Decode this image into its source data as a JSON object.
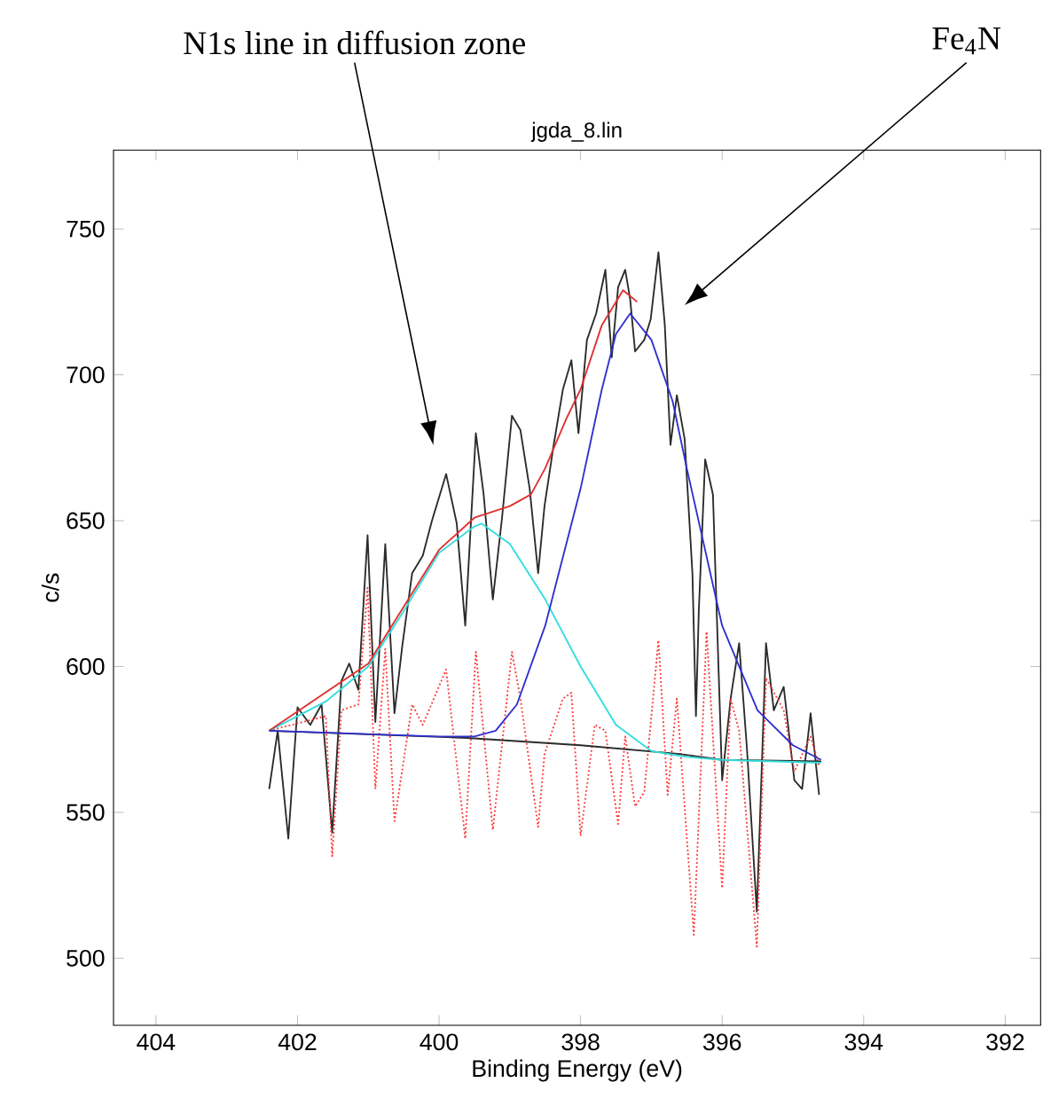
{
  "chart_data": {
    "type": "line",
    "title": "jgda_8.lin",
    "xlabel": "Binding Energy (eV)",
    "ylabel": "c/s",
    "xlim": [
      404.6,
      391.5
    ],
    "ylim": [
      477,
      777
    ],
    "xticks": [
      404,
      402,
      400,
      398,
      396,
      394,
      392
    ],
    "yticks": [
      500,
      550,
      600,
      650,
      700,
      750
    ],
    "grid": false,
    "annotations": [
      "N1s line in diffusion zone",
      "Fe$_{4}$N"
    ],
    "series": [
      {
        "color": "#2b2b2b",
        "line_style": "solid",
        "x": [
          402.4,
          402.28,
          402.13,
          402.0,
          401.82,
          401.66,
          401.51,
          401.38,
          401.27,
          401.14,
          401.01,
          400.9,
          400.76,
          400.63,
          400.52,
          400.38,
          400.23,
          400.1,
          399.9,
          399.75,
          399.63,
          399.48,
          399.37,
          399.24,
          399.11,
          398.97,
          398.85,
          398.72,
          398.6,
          398.51,
          398.38,
          398.25,
          398.13,
          398.03,
          397.91,
          397.78,
          397.65,
          397.56,
          397.47,
          397.37,
          397.3,
          397.23,
          397.1,
          397.01,
          396.9,
          396.81,
          396.73,
          396.64,
          396.53,
          396.42,
          396.37,
          396.33,
          396.24,
          396.13,
          396.0,
          395.88,
          395.76,
          395.65,
          395.51,
          395.38,
          395.27,
          395.13,
          394.98,
          394.87,
          394.75,
          394.63
        ],
        "values": [
          558,
          578,
          541,
          586,
          580,
          587,
          543,
          595,
          601,
          592,
          645,
          581,
          642,
          584,
          607,
          632,
          638,
          650,
          666,
          649,
          614,
          680,
          659,
          623,
          651,
          686,
          681,
          661,
          632,
          655,
          676,
          695,
          705,
          680,
          712,
          721,
          736,
          706,
          730,
          736,
          726,
          708,
          712,
          719,
          742,
          717,
          676,
          693,
          678,
          632,
          583,
          619,
          671,
          659,
          561,
          589,
          608,
          572,
          516,
          608,
          585,
          593,
          561,
          558,
          584,
          556
        ]
      },
      {
        "color": "#ff3333",
        "line_style": "dotted",
        "x": [
          402.4,
          401.6,
          401.51,
          401.38,
          401.14,
          401.01,
          400.9,
          400.76,
          400.63,
          400.38,
          400.23,
          399.9,
          399.63,
          399.48,
          399.24,
          398.97,
          398.85,
          398.6,
          398.51,
          398.25,
          398.13,
          398.0,
          397.8,
          397.65,
          397.47,
          397.37,
          397.23,
          397.1,
          396.9,
          396.77,
          396.64,
          396.4,
          396.22,
          396.0,
          395.88,
          395.76,
          395.51,
          395.38,
          395.13,
          394.98,
          394.75,
          394.63
        ],
        "values": [
          578,
          583,
          535,
          585,
          587,
          627,
          558,
          606,
          547,
          587,
          580,
          599,
          541,
          605,
          544,
          605,
          589,
          545,
          570,
          589,
          591,
          542,
          580,
          578,
          546,
          576,
          552,
          557,
          609,
          556,
          589,
          508,
          612,
          524,
          589,
          578,
          504,
          596,
          585,
          564,
          576,
          566
        ]
      },
      {
        "color": "#2b2b2b",
        "line_style": "solid",
        "x": [
          402.4,
          400.0,
          399.6,
          398.0,
          396.6,
          396.0,
          394.6
        ],
        "values": [
          578,
          null,
          575.5,
          573,
          570,
          568,
          567.5
        ]
      },
      {
        "color": "#33dddd",
        "line_style": "solid",
        "x": [
          402.4,
          401.6,
          401.0,
          400.5,
          400.0,
          399.5,
          399.4,
          399.0,
          398.5,
          398.0,
          397.5,
          397.0,
          396.5,
          396.0,
          394.6
        ],
        "values": [
          578,
          588,
          600,
          619,
          639,
          648,
          649,
          642,
          623,
          600,
          580,
          571,
          569,
          568,
          567
        ]
      },
      {
        "color": "#e03030",
        "line_style": "solid",
        "x": [
          402.4,
          401.0,
          400.0,
          399.5,
          399.0,
          398.7,
          398.5,
          398.2,
          398.0,
          397.7,
          397.4,
          397.2
        ],
        "values": [
          578,
          601,
          640,
          651,
          655,
          659,
          668,
          685,
          695,
          717,
          729,
          725
        ]
      },
      {
        "color": "#3030d0",
        "line_style": "solid",
        "x": [
          402.4,
          400.0,
          399.5,
          399.2,
          398.9,
          398.5,
          398.0,
          397.7,
          397.5,
          397.3,
          397.0,
          396.7,
          396.5,
          396.0,
          395.5,
          395.0,
          394.6
        ],
        "values": [
          578,
          576,
          576,
          578,
          587,
          614,
          661,
          695,
          714,
          721,
          712,
          691,
          668,
          614,
          585,
          573,
          568
        ]
      }
    ]
  }
}
